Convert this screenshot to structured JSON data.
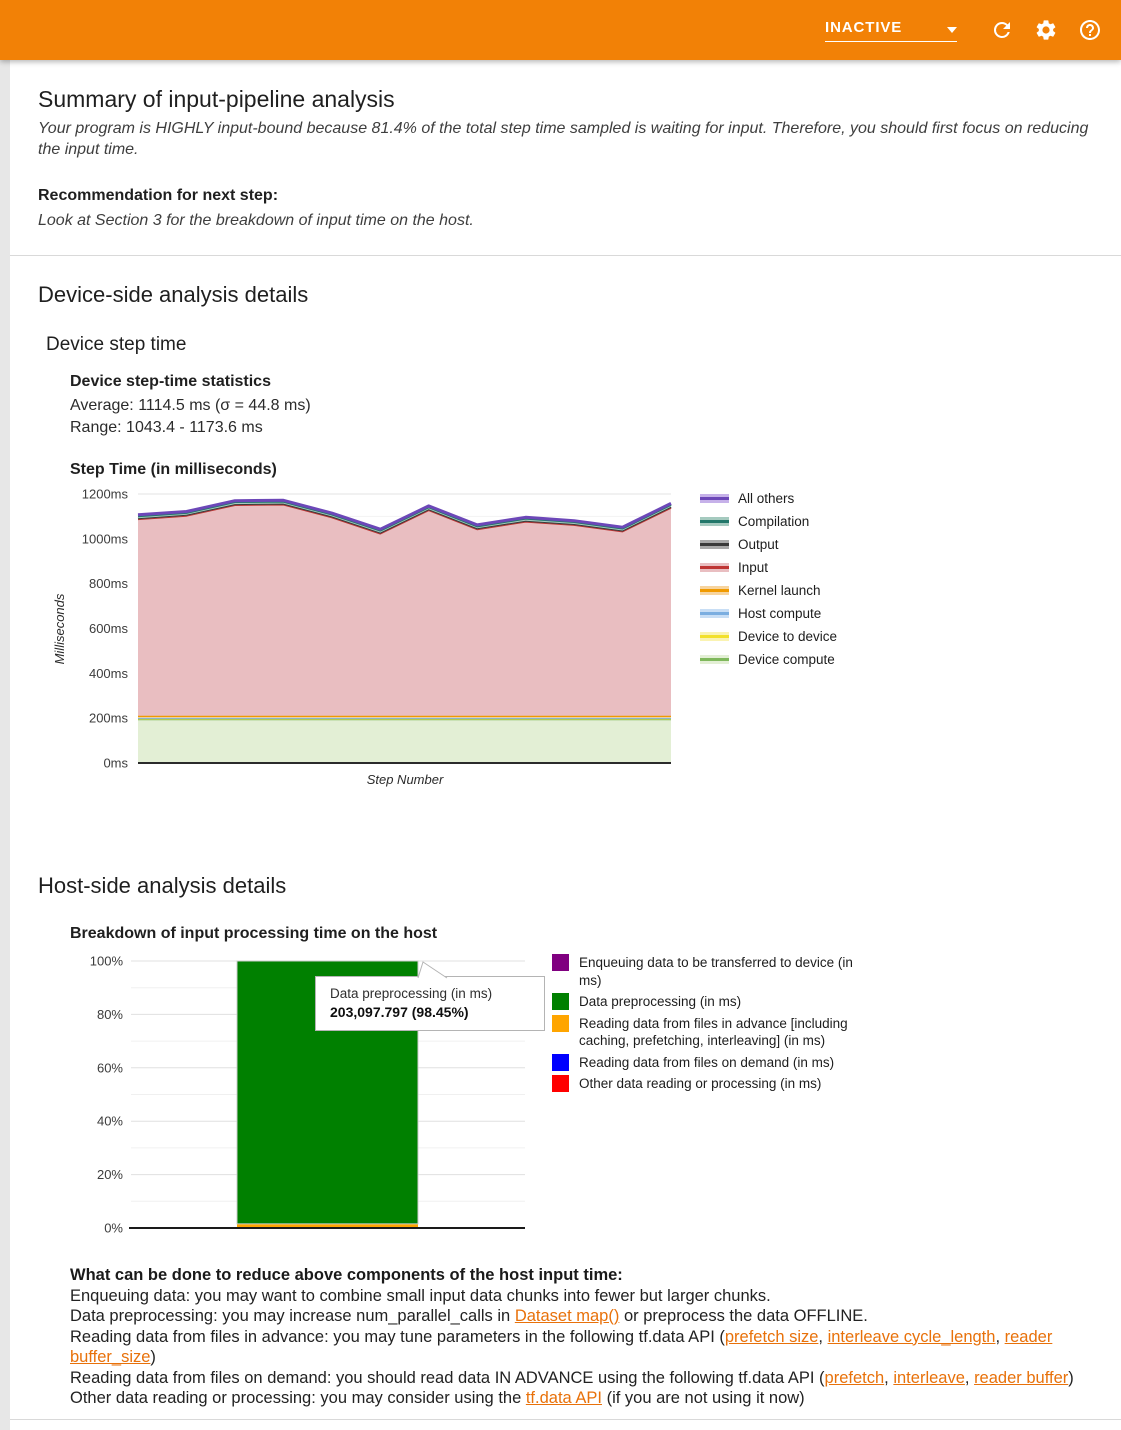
{
  "header": {
    "run_state": "INACTIVE",
    "icons": [
      "chevron-down-icon",
      "refresh-icon",
      "settings-icon",
      "help-icon"
    ]
  },
  "summary": {
    "title": "Summary of input-pipeline analysis",
    "body": "Your program is HIGHLY input-bound because 81.4% of the total step time sampled is waiting for input. Therefore, you should first focus on reducing the input time.",
    "recommendation_label": "Recommendation for next step:",
    "recommendation": "Look at Section 3 for the breakdown of input time on the host."
  },
  "device_section": {
    "title": "Device-side analysis details",
    "subtitle": "Device step time",
    "stats_title": "Device step-time statistics",
    "average": "Average: 1114.5 ms (σ = 44.8 ms)",
    "range": "Range: 1043.4 - 1173.6 ms"
  },
  "host_section": {
    "title": "Host-side analysis details",
    "advice": {
      "title": "What can be done to reduce above components of the host input time:",
      "lines": [
        [
          {
            "t": "Enqueuing data: you may want to combine small input data chunks into fewer but larger chunks."
          }
        ],
        [
          {
            "t": "Data preprocessing: you may increase num_parallel_calls in "
          },
          {
            "t": "Dataset map()",
            "link": true
          },
          {
            "t": " or preprocess the data OFFLINE."
          }
        ],
        [
          {
            "t": "Reading data from files in advance: you may tune parameters in the following tf.data API ("
          },
          {
            "t": "prefetch size",
            "link": true
          },
          {
            "t": ", "
          },
          {
            "t": "interleave cycle_length",
            "link": true
          },
          {
            "t": ", "
          },
          {
            "t": "reader buffer_size",
            "link": true
          },
          {
            "t": ")"
          }
        ],
        [
          {
            "t": "Reading data from files on demand: you should read data IN ADVANCE using the following tf.data API ("
          },
          {
            "t": "prefetch",
            "link": true
          },
          {
            "t": ", "
          },
          {
            "t": "interleave",
            "link": true
          },
          {
            "t": ", "
          },
          {
            "t": "reader buffer",
            "link": true
          },
          {
            "t": ")"
          }
        ],
        [
          {
            "t": "Other data reading or processing: you may consider using the "
          },
          {
            "t": "tf.data API",
            "link": true
          },
          {
            "t": " (if you are not using it now)"
          }
        ]
      ]
    }
  },
  "chart_data": [
    {
      "type": "area",
      "title": "Step Time (in milliseconds)",
      "xlabel": "Step Number",
      "ylabel": "Milliseconds",
      "ylim": [
        0,
        1200
      ],
      "y_ticks": [
        "0ms",
        "200ms",
        "400ms",
        "600ms",
        "800ms",
        "1000ms",
        "1200ms"
      ],
      "grid": true,
      "legend_position": "right",
      "note": "stacked areas listed bottom-to-top; legend shows reverse order",
      "series": [
        {
          "name": "Device compute",
          "line": "#7fb85c",
          "fill": "#e3efd5",
          "lw": 2,
          "values": [
            195,
            195,
            195,
            195,
            195,
            195,
            195,
            195,
            195,
            195,
            195,
            195
          ]
        },
        {
          "name": "Device to device",
          "line": "#f2e02c",
          "fill": "#faf3b2",
          "lw": 2,
          "values": [
            4,
            4,
            4,
            4,
            4,
            4,
            4,
            4,
            4,
            4,
            4,
            4
          ]
        },
        {
          "name": "Host compute",
          "line": "#7baee0",
          "fill": "#c8def5",
          "lw": 2,
          "values": [
            2,
            2,
            2,
            2,
            2,
            2,
            2,
            2,
            2,
            2,
            2,
            2
          ]
        },
        {
          "name": "Kernel launch",
          "line": "#f09a00",
          "fill": "#f7d49e",
          "lw": 2.5,
          "values": [
            10,
            10,
            10,
            10,
            10,
            10,
            10,
            10,
            10,
            10,
            10,
            10
          ]
        },
        {
          "name": "Input",
          "line": "#be3433",
          "fill": "#e9bec1",
          "lw": 2,
          "values": [
            877,
            892,
            940,
            942,
            885,
            813,
            917,
            832,
            866,
            851,
            822,
            928
          ]
        },
        {
          "name": "Output",
          "line": "#3a3a3a",
          "fill": "#a9a9a9",
          "lw": 2,
          "values": [
            4,
            4,
            4,
            4,
            4,
            4,
            4,
            4,
            4,
            4,
            4,
            4
          ]
        },
        {
          "name": "Compilation",
          "line": "#22776a",
          "fill": "#a5cabf",
          "lw": 2.5,
          "values": [
            10,
            10,
            10,
            10,
            10,
            10,
            10,
            10,
            10,
            10,
            10,
            10
          ]
        },
        {
          "name": "All others",
          "line": "#6c47b8",
          "fill": "#c6b1e9",
          "lw": 3,
          "values": [
            5,
            5,
            5,
            5,
            5,
            5,
            5,
            5,
            5,
            5,
            5,
            5
          ]
        }
      ],
      "step_totals_ms": [
        1107,
        1122,
        1170,
        1172,
        1115,
        1043,
        1147,
        1062,
        1096,
        1081,
        1052,
        1158
      ]
    },
    {
      "type": "bar",
      "title": "Breakdown of input processing time on the host",
      "y_ticks": [
        "0%",
        "20%",
        "40%",
        "60%",
        "80%",
        "100%"
      ],
      "ylim": [
        0,
        100
      ],
      "legend_position": "right",
      "series": [
        {
          "name": "Enqueuing data to be transferred to device (in ms)",
          "color": "#800080",
          "pct": 0
        },
        {
          "name": "Data preprocessing (in ms)",
          "color": "#008000",
          "pct": 98.45
        },
        {
          "name": "Reading data from files in advance [including caching, prefetching, interleaving] (in ms)",
          "color": "#ffa500",
          "pct": 1.45
        },
        {
          "name": "Reading data from files on demand (in ms)",
          "color": "#0000ff",
          "pct": 0.05
        },
        {
          "name": "Other data reading or processing (in ms)",
          "color": "#ff0000",
          "pct": 0.05
        }
      ],
      "stack_order": [
        4,
        3,
        2,
        1,
        0
      ],
      "tooltip": {
        "label": "Data preprocessing (in ms)",
        "value": "203,097.797 (98.45%)"
      }
    }
  ]
}
